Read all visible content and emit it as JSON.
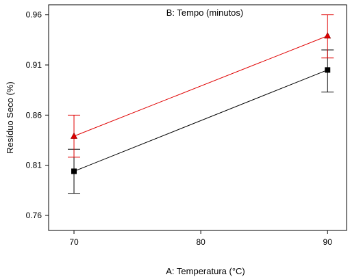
{
  "chart_data": {
    "type": "line",
    "title": "B: Tempo (minutos)",
    "xlabel": "A: Temperatura (°C)",
    "ylabel": "Resíduo Seco (%)",
    "x": [
      70,
      90
    ],
    "x_tick_labels": [
      "70",
      "80",
      "90"
    ],
    "y_tick_labels": [
      "0.76",
      "0.81",
      "0.86",
      "0.91",
      "0.96"
    ],
    "xlim": [
      68,
      91.5
    ],
    "ylim": [
      0.745,
      0.97
    ],
    "grid": false,
    "series": [
      {
        "marker": "square",
        "color": "#000000",
        "values": [
          0.804,
          0.905
        ],
        "error_low": [
          0.782,
          0.883
        ],
        "error_high": [
          0.826,
          0.925
        ]
      },
      {
        "marker": "triangle",
        "color": "#e00000",
        "values": [
          0.839,
          0.939
        ],
        "error_low": [
          0.818,
          0.917
        ],
        "error_high": [
          0.86,
          0.96
        ]
      }
    ]
  }
}
